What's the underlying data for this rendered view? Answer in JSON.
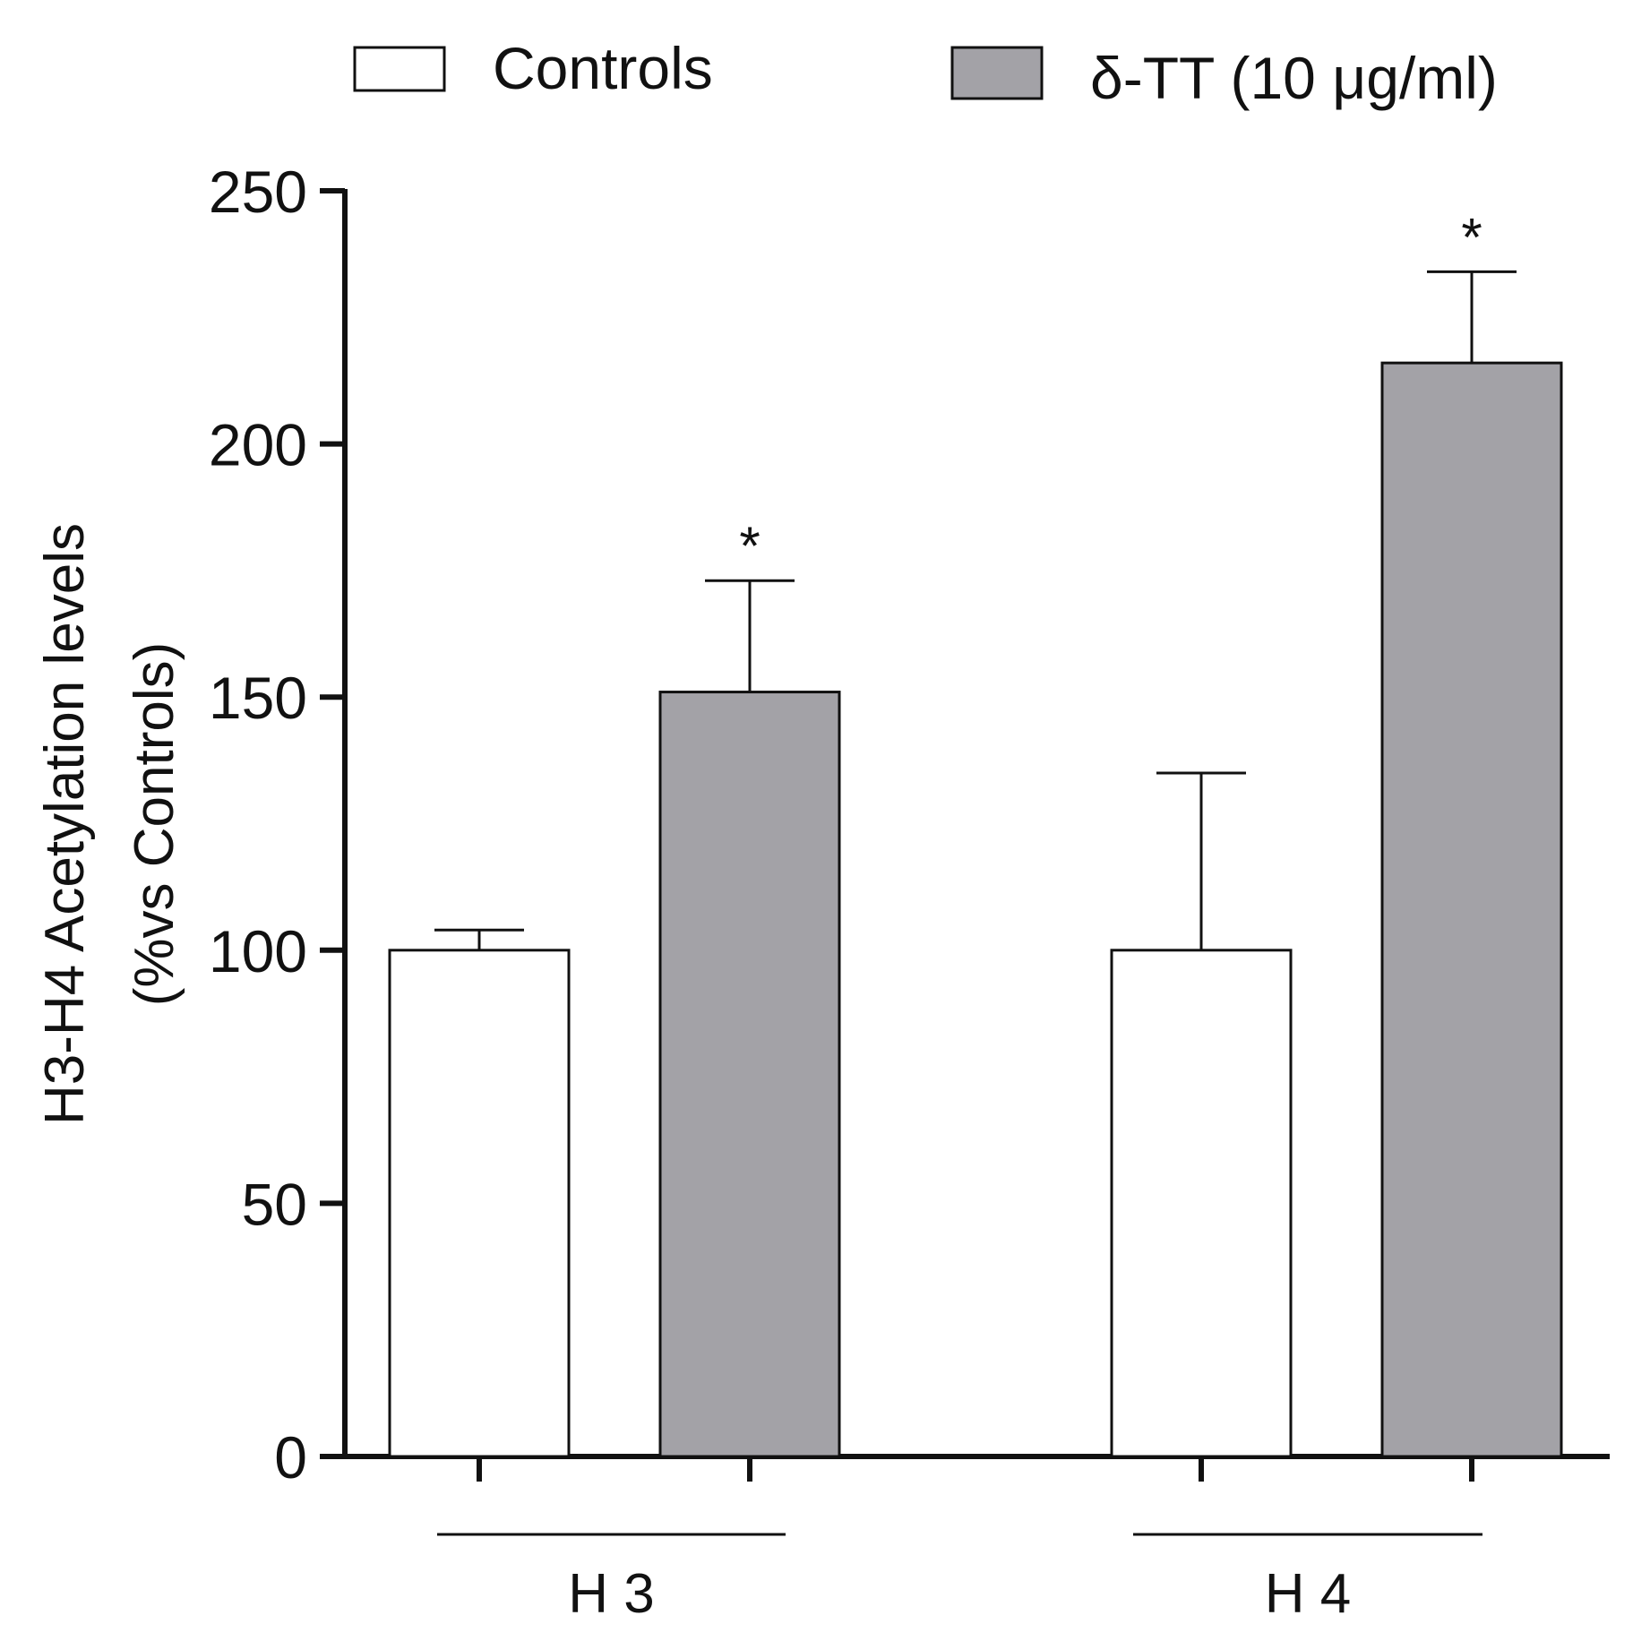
{
  "chart_data": {
    "type": "bar",
    "title": "",
    "ylabel_line1": "H3-H4 Acetylation levels",
    "ylabel_line2": "(%vs Controls)",
    "xlabel": "",
    "ylim": [
      0,
      250
    ],
    "yticks": [
      0,
      50,
      100,
      150,
      200,
      250
    ],
    "groups": [
      "H 3",
      "H 4"
    ],
    "series": [
      {
        "name": "Controls",
        "color": "#ffffff",
        "values": [
          100,
          100
        ],
        "errors": [
          4,
          35
        ],
        "significance": [
          "",
          ""
        ]
      },
      {
        "name": "δ-TT  (10 μg/ml)",
        "color": "#a3a2a7",
        "values": [
          151,
          216
        ],
        "errors": [
          22,
          18
        ],
        "significance": [
          "*",
          "*"
        ]
      }
    ],
    "legend_position": "top"
  }
}
